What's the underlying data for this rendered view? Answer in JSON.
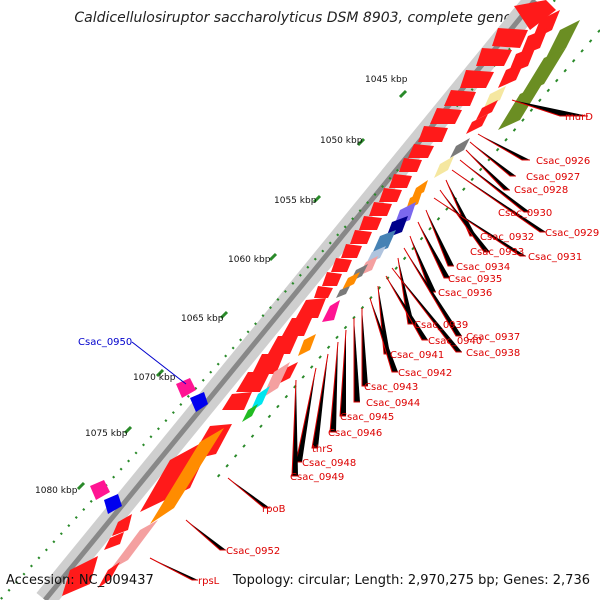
{
  "title": "Caldicellulosiruptor saccharolyticus DSM 8903, complete geno...",
  "footer": {
    "accession": "Accession: NC_009437",
    "info": "Topology: circular; Length: 2,970,275 bp; Genes: 2,736"
  },
  "colors": {
    "forward_gene": "#ff1a1a",
    "axis_green": "#2a8a2a",
    "label_red": "#dd0000",
    "label_blue": "#0000cc",
    "backbone": "#888888"
  },
  "ticks": [
    {
      "label": "1045 kbp"
    },
    {
      "label": "1050 kbp"
    },
    {
      "label": "1055 kbp"
    },
    {
      "label": "1060 kbp"
    },
    {
      "label": "1065 kbp"
    },
    {
      "label": "1070 kbp"
    },
    {
      "label": "1075 kbp"
    },
    {
      "label": "1080 kbp"
    }
  ],
  "gene_labels": [
    {
      "text": "murD",
      "color": "red"
    },
    {
      "text": "Csac_0926",
      "color": "red"
    },
    {
      "text": "Csac_0927",
      "color": "red"
    },
    {
      "text": "Csac_0928",
      "color": "red"
    },
    {
      "text": "Csac_0930",
      "color": "red"
    },
    {
      "text": "Csac_0929",
      "color": "red"
    },
    {
      "text": "Csac_0932",
      "color": "red"
    },
    {
      "text": "Csac_0933",
      "color": "red"
    },
    {
      "text": "Csac_0931",
      "color": "red"
    },
    {
      "text": "Csac_0934",
      "color": "red"
    },
    {
      "text": "Csac_0935",
      "color": "red"
    },
    {
      "text": "Csac_0936",
      "color": "red"
    },
    {
      "text": "Csac_0939",
      "color": "red"
    },
    {
      "text": "Csac_0937",
      "color": "red"
    },
    {
      "text": "Csac_0940",
      "color": "red"
    },
    {
      "text": "Csac_0938",
      "color": "red"
    },
    {
      "text": "Csac_0941",
      "color": "red"
    },
    {
      "text": "Csac_0942",
      "color": "red"
    },
    {
      "text": "Csac_0943",
      "color": "red"
    },
    {
      "text": "Csac_0944",
      "color": "red"
    },
    {
      "text": "Csac_0945",
      "color": "red"
    },
    {
      "text": "Csac_0946",
      "color": "red"
    },
    {
      "text": "thrS",
      "color": "red"
    },
    {
      "text": "Csac_0948",
      "color": "red"
    },
    {
      "text": "Csac_0949",
      "color": "red"
    },
    {
      "text": "rpoB",
      "color": "red"
    },
    {
      "text": "Csac_0952",
      "color": "red"
    },
    {
      "text": "rpsL",
      "color": "red"
    },
    {
      "text": "Csac_0950",
      "color": "blue"
    }
  ]
}
